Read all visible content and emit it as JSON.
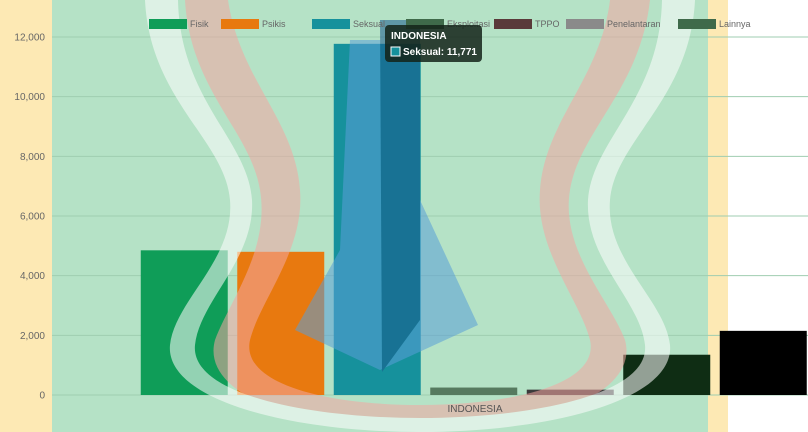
{
  "chart_data": {
    "type": "bar",
    "categories": [
      "INDONESIA"
    ],
    "series": [
      {
        "name": "Fisik",
        "values": [
          4850
        ],
        "color": "#0f9d58"
      },
      {
        "name": "Psikis",
        "values": [
          4800
        ],
        "color": "#e8790f"
      },
      {
        "name": "Seksual",
        "values": [
          11771
        ],
        "color": "#16919c"
      },
      {
        "name": "Eksploitasi",
        "values": [
          250
        ],
        "color": "#567a5f"
      },
      {
        "name": "TPPO",
        "values": [
          180
        ],
        "color": "#3a3a3a"
      },
      {
        "name": "Penelantaran",
        "values": [
          1350
        ],
        "color": "#0f2d14"
      },
      {
        "name": "Lainnya",
        "values": [
          2150
        ],
        "color": "#000000"
      }
    ],
    "legend_colors": [
      "#0f9d58",
      "#e8790f",
      "#16919c",
      "#3f6a4a",
      "#5a3a3a",
      "#8a8a8a",
      "#3f6a4a"
    ],
    "ylim": [
      0,
      12000
    ],
    "yticks": [
      "0",
      "2,000",
      "4,000",
      "6,000",
      "8,000",
      "10,000",
      "12,000"
    ],
    "ytick_values": [
      0,
      2000,
      4000,
      6000,
      8000,
      10000,
      12000
    ],
    "grid": true,
    "legend_position": "top-center",
    "tooltip": {
      "title": "INDONESIA",
      "label": "Seksual: 11,771",
      "series_index": 2
    }
  }
}
